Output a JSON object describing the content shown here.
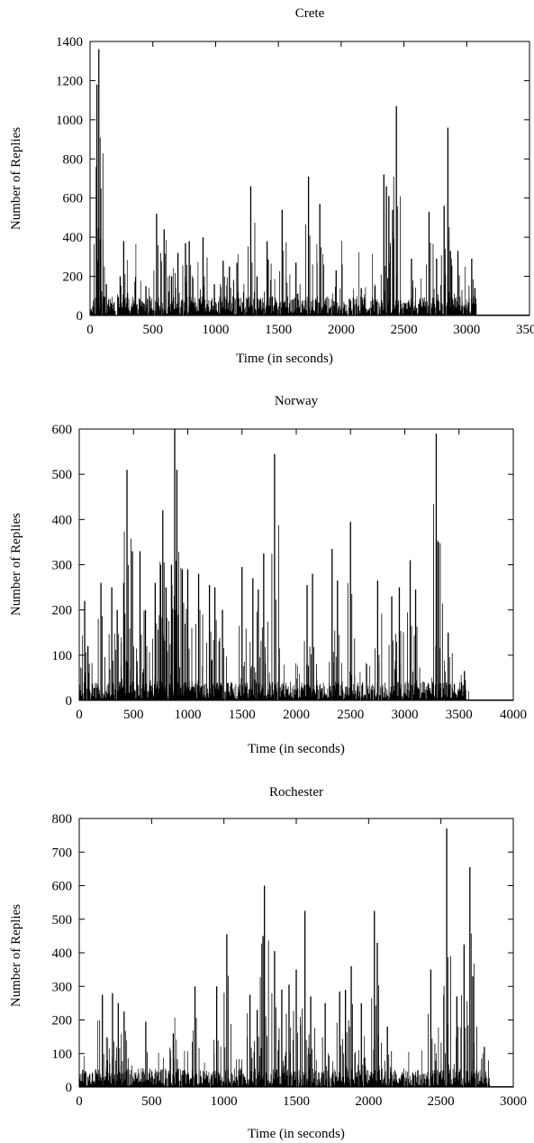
{
  "chart_data": [
    {
      "type": "bar",
      "title": "Crete",
      "xlabel": "Time (in seconds)",
      "ylabel": "Number of Replies",
      "xlim": [
        0,
        3500
      ],
      "ylim": [
        0,
        1400
      ],
      "xticks": [
        0,
        500,
        1000,
        1500,
        2000,
        2500,
        3000,
        3500
      ],
      "yticks": [
        0,
        200,
        400,
        600,
        800,
        1000,
        1200,
        1400
      ],
      "data_end": 3080,
      "grid": false,
      "peaks": [
        {
          "x": 55,
          "y": 1180
        },
        {
          "x": 70,
          "y": 1360
        },
        {
          "x": 82,
          "y": 390
        },
        {
          "x": 130,
          "y": 160
        },
        {
          "x": 240,
          "y": 200
        },
        {
          "x": 268,
          "y": 380
        },
        {
          "x": 360,
          "y": 150
        },
        {
          "x": 445,
          "y": 150
        },
        {
          "x": 530,
          "y": 520
        },
        {
          "x": 590,
          "y": 440
        },
        {
          "x": 650,
          "y": 200
        },
        {
          "x": 700,
          "y": 320
        },
        {
          "x": 760,
          "y": 370
        },
        {
          "x": 790,
          "y": 380
        },
        {
          "x": 900,
          "y": 400
        },
        {
          "x": 990,
          "y": 160
        },
        {
          "x": 1060,
          "y": 280
        },
        {
          "x": 1110,
          "y": 250
        },
        {
          "x": 1170,
          "y": 270
        },
        {
          "x": 1280,
          "y": 660
        },
        {
          "x": 1330,
          "y": 200
        },
        {
          "x": 1410,
          "y": 380
        },
        {
          "x": 1530,
          "y": 540
        },
        {
          "x": 1640,
          "y": 270
        },
        {
          "x": 1740,
          "y": 710
        },
        {
          "x": 1830,
          "y": 570
        },
        {
          "x": 1960,
          "y": 230
        },
        {
          "x": 2160,
          "y": 140
        },
        {
          "x": 2270,
          "y": 150
        },
        {
          "x": 2340,
          "y": 720
        },
        {
          "x": 2360,
          "y": 660
        },
        {
          "x": 2380,
          "y": 610
        },
        {
          "x": 2410,
          "y": 540
        },
        {
          "x": 2440,
          "y": 1070
        },
        {
          "x": 2560,
          "y": 290
        },
        {
          "x": 2700,
          "y": 530
        },
        {
          "x": 2760,
          "y": 290
        },
        {
          "x": 2820,
          "y": 560
        },
        {
          "x": 2850,
          "y": 960
        },
        {
          "x": 2870,
          "y": 330
        },
        {
          "x": 2930,
          "y": 330
        },
        {
          "x": 3040,
          "y": 290
        }
      ]
    },
    {
      "type": "bar",
      "title": "Norway",
      "xlabel": "Time (in seconds)",
      "ylabel": "Number of Replies",
      "xlim": [
        0,
        4000
      ],
      "ylim": [
        0,
        600
      ],
      "xticks": [
        0,
        500,
        1000,
        1500,
        2000,
        2500,
        3000,
        3500,
        4000
      ],
      "yticks": [
        0,
        100,
        200,
        300,
        400,
        500,
        600
      ],
      "data_end": 3560,
      "grid": false,
      "peaks": [
        {
          "x": 50,
          "y": 220
        },
        {
          "x": 80,
          "y": 120
        },
        {
          "x": 200,
          "y": 260
        },
        {
          "x": 300,
          "y": 250
        },
        {
          "x": 350,
          "y": 200
        },
        {
          "x": 410,
          "y": 260
        },
        {
          "x": 440,
          "y": 510
        },
        {
          "x": 490,
          "y": 330
        },
        {
          "x": 560,
          "y": 330
        },
        {
          "x": 610,
          "y": 200
        },
        {
          "x": 700,
          "y": 260
        },
        {
          "x": 750,
          "y": 300
        },
        {
          "x": 770,
          "y": 420
        },
        {
          "x": 800,
          "y": 250
        },
        {
          "x": 850,
          "y": 300
        },
        {
          "x": 880,
          "y": 600
        },
        {
          "x": 900,
          "y": 510
        },
        {
          "x": 950,
          "y": 290
        },
        {
          "x": 1000,
          "y": 290
        },
        {
          "x": 1100,
          "y": 280
        },
        {
          "x": 1200,
          "y": 255
        },
        {
          "x": 1250,
          "y": 250
        },
        {
          "x": 1320,
          "y": 200
        },
        {
          "x": 1500,
          "y": 295
        },
        {
          "x": 1600,
          "y": 270
        },
        {
          "x": 1650,
          "y": 245
        },
        {
          "x": 1700,
          "y": 325
        },
        {
          "x": 1800,
          "y": 545
        },
        {
          "x": 2100,
          "y": 255
        },
        {
          "x": 2150,
          "y": 280
        },
        {
          "x": 2330,
          "y": 335
        },
        {
          "x": 2380,
          "y": 265
        },
        {
          "x": 2500,
          "y": 395
        },
        {
          "x": 2750,
          "y": 265
        },
        {
          "x": 2880,
          "y": 230
        },
        {
          "x": 2950,
          "y": 250
        },
        {
          "x": 3050,
          "y": 310
        },
        {
          "x": 3100,
          "y": 245
        },
        {
          "x": 3290,
          "y": 590
        },
        {
          "x": 3310,
          "y": 350
        },
        {
          "x": 3400,
          "y": 150
        },
        {
          "x": 3550,
          "y": 65
        }
      ]
    },
    {
      "type": "bar",
      "title": "Rochester",
      "xlabel": "Time (in seconds)",
      "ylabel": "Number of Replies",
      "xlim": [
        0,
        3000
      ],
      "ylim": [
        0,
        800
      ],
      "xticks": [
        0,
        500,
        1000,
        1500,
        2000,
        2500,
        3000
      ],
      "yticks": [
        0,
        100,
        200,
        300,
        400,
        500,
        600,
        700,
        800
      ],
      "data_end": 2840,
      "grid": false,
      "peaks": [
        {
          "x": 160,
          "y": 275
        },
        {
          "x": 230,
          "y": 280
        },
        {
          "x": 270,
          "y": 250
        },
        {
          "x": 310,
          "y": 225
        },
        {
          "x": 460,
          "y": 195
        },
        {
          "x": 650,
          "y": 160
        },
        {
          "x": 800,
          "y": 300
        },
        {
          "x": 950,
          "y": 300
        },
        {
          "x": 1020,
          "y": 455
        },
        {
          "x": 1180,
          "y": 275
        },
        {
          "x": 1230,
          "y": 230
        },
        {
          "x": 1270,
          "y": 450
        },
        {
          "x": 1280,
          "y": 600
        },
        {
          "x": 1350,
          "y": 405
        },
        {
          "x": 1400,
          "y": 290
        },
        {
          "x": 1450,
          "y": 305
        },
        {
          "x": 1500,
          "y": 350
        },
        {
          "x": 1560,
          "y": 525
        },
        {
          "x": 1600,
          "y": 270
        },
        {
          "x": 1700,
          "y": 250
        },
        {
          "x": 1800,
          "y": 285
        },
        {
          "x": 1840,
          "y": 290
        },
        {
          "x": 1880,
          "y": 360
        },
        {
          "x": 1950,
          "y": 250
        },
        {
          "x": 2040,
          "y": 525
        },
        {
          "x": 2060,
          "y": 430
        },
        {
          "x": 2130,
          "y": 180
        },
        {
          "x": 2430,
          "y": 350
        },
        {
          "x": 2520,
          "y": 275
        },
        {
          "x": 2540,
          "y": 770
        },
        {
          "x": 2610,
          "y": 270
        },
        {
          "x": 2660,
          "y": 425
        },
        {
          "x": 2700,
          "y": 655
        },
        {
          "x": 2720,
          "y": 330
        },
        {
          "x": 2800,
          "y": 120
        }
      ]
    }
  ]
}
